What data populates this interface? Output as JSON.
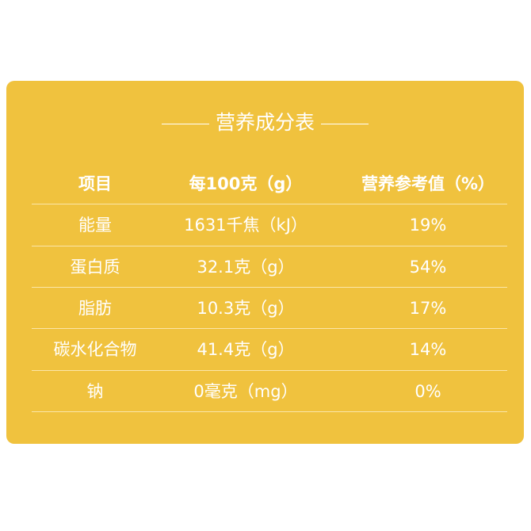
{
  "title": "营养成分表",
  "header": [
    "项目",
    "每100克（g）",
    "营养参考值（%）"
  ],
  "rows": [
    [
      "能量",
      "1631千焦（kJ）",
      "19%"
    ],
    [
      "蛋白质",
      "32.1克（g）",
      "54%"
    ],
    [
      "脂肪",
      "10.3克（g）",
      "17%"
    ],
    [
      "碳水化合物",
      "41.4克（g）",
      "14%"
    ],
    [
      "钠",
      "0毫克（mg）",
      "0%"
    ]
  ],
  "colors": {
    "card": "#F0C23E",
    "text": "#FFFFFF"
  }
}
